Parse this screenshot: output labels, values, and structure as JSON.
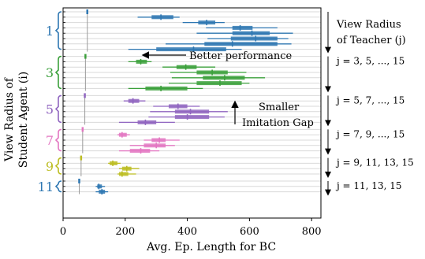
{
  "chart_data": {
    "type": "scatter",
    "xlabel": "Avg. Ep. Length for BC",
    "ylabel_lines": [
      "View Radius of",
      "Student Agent (i)"
    ],
    "xlim": [
      0,
      830
    ],
    "xticks": [
      0,
      200,
      400,
      600,
      800
    ],
    "grid": "horizontal",
    "groups": [
      {
        "student": "1",
        "color": "#2e77b2",
        "label": "j = 3, 5, ..., 15",
        "annotation_title": [
          "View Radius",
          "of Teacher (j)"
        ],
        "baseline": {
          "x": 78,
          "whisker": [
            76,
            80
          ]
        },
        "rows": [
          {
            "center": 315,
            "iqr": [
              285,
              355
            ],
            "whisker": [
              240,
              375
            ]
          },
          {
            "center": 462,
            "iqr": [
              435,
              490
            ],
            "whisker": [
              385,
              520
            ]
          },
          {
            "center": 570,
            "iqr": [
              545,
              610
            ],
            "whisker": [
              460,
              690
            ]
          },
          {
            "center": 608,
            "iqr": [
              545,
              665
            ],
            "whisker": [
              430,
              740
            ]
          },
          {
            "center": 620,
            "iqr": [
              540,
              690
            ],
            "whisker": [
              465,
              725
            ]
          },
          {
            "center": 545,
            "iqr": [
              455,
              690
            ],
            "whisker": [
              330,
              735
            ]
          },
          {
            "center": 420,
            "iqr": [
              300,
              525
            ],
            "whisker": [
              210,
              575
            ]
          }
        ]
      },
      {
        "student": "3",
        "color": "#3ba03b",
        "label": "j = 3, 5, ..., 15",
        "baseline": {
          "x": 72,
          "whisker": [
            70,
            74
          ]
        },
        "rows": [
          {
            "center": 250,
            "iqr": [
              235,
              270
            ],
            "whisker": [
              210,
              285
            ]
          },
          {
            "center": 395,
            "iqr": [
              365,
              430
            ],
            "whisker": [
              320,
              490
            ]
          },
          {
            "center": 480,
            "iqr": [
              430,
              530
            ],
            "whisker": [
              345,
              590
            ]
          },
          {
            "center": 520,
            "iqr": [
              450,
              585
            ],
            "whisker": [
              350,
              650
            ]
          },
          {
            "center": 505,
            "iqr": [
              430,
              575
            ],
            "whisker": [
              340,
              600
            ]
          },
          {
            "center": 315,
            "iqr": [
              265,
              400
            ],
            "whisker": [
              210,
              450
            ]
          }
        ]
      },
      {
        "student": "5",
        "color": "#9065c0",
        "label": "j = 5, 7, ..., 15",
        "baseline": {
          "x": 70,
          "whisker": [
            68,
            72
          ]
        },
        "rows": [
          {
            "center": 225,
            "iqr": [
              210,
              245
            ],
            "whisker": [
              195,
              265
            ]
          },
          {
            "center": 370,
            "iqr": [
              340,
              400
            ],
            "whisker": [
              290,
              440
            ]
          },
          {
            "center": 410,
            "iqr": [
              360,
              470
            ],
            "whisker": [
              280,
              530
            ]
          },
          {
            "center": 400,
            "iqr": [
              360,
              470
            ],
            "whisker": [
              275,
              520
            ]
          },
          {
            "center": 265,
            "iqr": [
              240,
              300
            ],
            "whisker": [
              180,
              360
            ]
          }
        ]
      },
      {
        "student": "7",
        "color": "#e377c2",
        "label": "j = 7, 9, ..., 15",
        "baseline": {
          "x": 63,
          "whisker": [
            61,
            65
          ]
        },
        "rows": [
          {
            "center": 190,
            "iqr": [
              180,
              205
            ],
            "whisker": [
              175,
              215
            ]
          },
          {
            "center": 310,
            "iqr": [
              285,
              330
            ],
            "whisker": [
              260,
              375
            ]
          },
          {
            "center": 300,
            "iqr": [
              260,
              330
            ],
            "whisker": [
              215,
              360
            ]
          },
          {
            "center": 250,
            "iqr": [
              215,
              280
            ],
            "whisker": [
              180,
              310
            ]
          }
        ]
      },
      {
        "student": "9",
        "color": "#bcbd22",
        "label": "j = 9, 11, 13, 15",
        "baseline": {
          "x": 58,
          "whisker": [
            56,
            60
          ]
        },
        "rows": [
          {
            "center": 160,
            "iqr": [
              150,
              175
            ],
            "whisker": [
              145,
              185
            ]
          },
          {
            "center": 205,
            "iqr": [
              190,
              220
            ],
            "whisker": [
              180,
              245
            ]
          },
          {
            "center": 190,
            "iqr": [
              180,
              210
            ],
            "whisker": [
              175,
              235
            ]
          }
        ]
      },
      {
        "student": "11",
        "color": "#2e77b2",
        "label": "j = 11, 13, 15",
        "baseline": {
          "x": 52,
          "whisker": [
            50,
            54
          ]
        },
        "rows": [
          {
            "center": 115,
            "iqr": [
              110,
              125
            ],
            "whisker": [
              105,
              135
            ]
          },
          {
            "center": 125,
            "iqr": [
              115,
              135
            ],
            "whisker": [
              105,
              145
            ]
          }
        ]
      }
    ],
    "annotations": {
      "better_performance": "Better performance",
      "smaller_gap": [
        "Smaller",
        "Imitation Gap"
      ]
    }
  }
}
